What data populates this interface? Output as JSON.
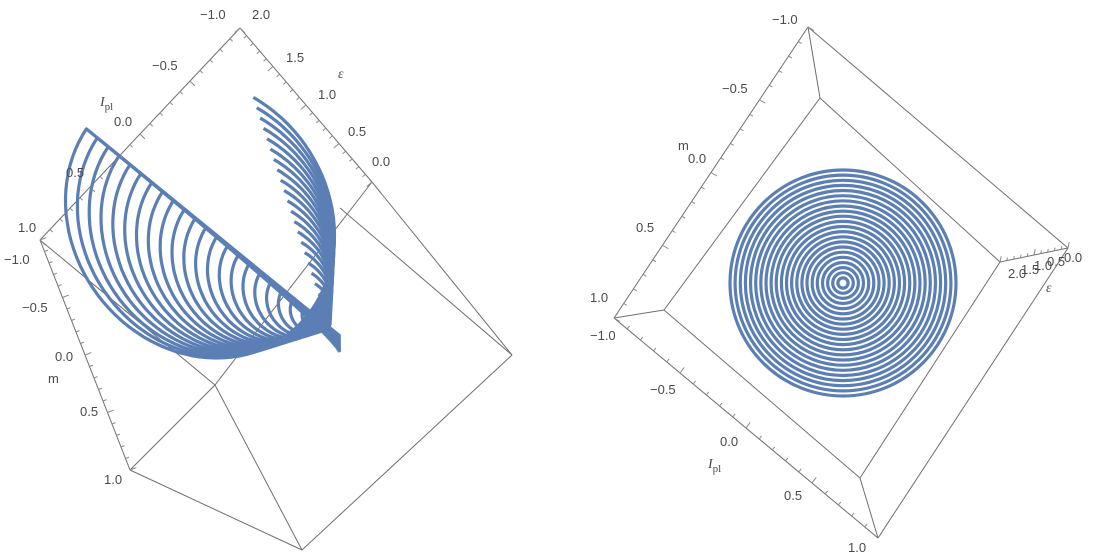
{
  "chart_data": [
    {
      "type": "line",
      "view": "oblique 3D view",
      "axes": [
        {
          "label": "I",
          "label_sub": "pl",
          "ticks": [
            "−1.0",
            "−0.5",
            "0.0",
            "0.5",
            "1.0"
          ],
          "range": [
            -1.0,
            1.0
          ]
        },
        {
          "label": "ε",
          "ticks": [
            "2.0",
            "1.5",
            "1.0",
            "0.5",
            "0.0"
          ],
          "range": [
            0.0,
            2.0
          ]
        },
        {
          "label": "m",
          "ticks": [
            "−1.0",
            "−0.5",
            "0.0",
            "0.5",
            "1.0"
          ],
          "range": [
            -1.0,
            1.0
          ]
        }
      ],
      "curve": {
        "shape": "conical helix",
        "turns": 22,
        "color": "#5b7fb5"
      }
    },
    {
      "type": "line",
      "view": "top-down 3D view",
      "axes": [
        {
          "label": "m",
          "ticks": [
            "−1.0",
            "−0.5",
            "0.0",
            "0.5",
            "1.0"
          ],
          "range": [
            -1.0,
            1.0
          ]
        },
        {
          "label": "I",
          "label_sub": "pl",
          "ticks": [
            "−1.0",
            "−0.5",
            "0.0",
            "0.5",
            "1.0"
          ],
          "range": [
            -1.0,
            1.0
          ]
        },
        {
          "label": "ε",
          "ticks": [
            "2.0",
            "1.5",
            "1.0",
            "0.5",
            "0.0"
          ],
          "range": [
            0.0,
            2.0
          ]
        }
      ],
      "curve": {
        "shape": "concentric spiral",
        "turns": 22,
        "color": "#5b7fb5"
      }
    }
  ]
}
